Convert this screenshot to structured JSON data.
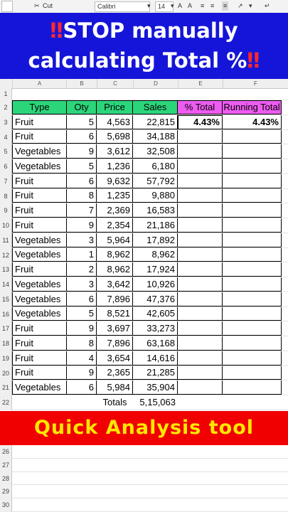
{
  "toolbar": {
    "cut_label": "Cut",
    "font_name": "Calibri",
    "font_size": "14"
  },
  "banner": {
    "line1_mark": "‼",
    "line1_text": "STOP manually",
    "line2_text": "calculating Total %",
    "line2_mark": "‼"
  },
  "columns": [
    "A",
    "B",
    "C",
    "D",
    "E",
    "F"
  ],
  "headers": {
    "type": "Type",
    "qty": "Oty",
    "price": "Price",
    "sales": "Sales",
    "pct_total": "% Total",
    "running_total": "Running Total"
  },
  "first_row_calc": {
    "pct_total": "4.43%",
    "running_total": "4.43%"
  },
  "rows": [
    {
      "type": "Fruit",
      "qty": "5",
      "price": "4,563",
      "sales": "22,815"
    },
    {
      "type": "Fruit",
      "qty": "6",
      "price": "5,698",
      "sales": "34,188"
    },
    {
      "type": "Vegetables",
      "qty": "9",
      "price": "3,612",
      "sales": "32,508"
    },
    {
      "type": "Vegetables",
      "qty": "5",
      "price": "1,236",
      "sales": "6,180"
    },
    {
      "type": "Fruit",
      "qty": "6",
      "price": "9,632",
      "sales": "57,792"
    },
    {
      "type": "Fruit",
      "qty": "8",
      "price": "1,235",
      "sales": "9,880"
    },
    {
      "type": "Fruit",
      "qty": "7",
      "price": "2,369",
      "sales": "16,583"
    },
    {
      "type": "Fruit",
      "qty": "9",
      "price": "2,354",
      "sales": "21,186"
    },
    {
      "type": "Vegetables",
      "qty": "3",
      "price": "5,964",
      "sales": "17,892"
    },
    {
      "type": "Vegetables",
      "qty": "1",
      "price": "8,962",
      "sales": "8,962"
    },
    {
      "type": "Fruit",
      "qty": "2",
      "price": "8,962",
      "sales": "17,924"
    },
    {
      "type": "Vegetables",
      "qty": "3",
      "price": "3,642",
      "sales": "10,926"
    },
    {
      "type": "Vegetables",
      "qty": "6",
      "price": "7,896",
      "sales": "47,376"
    },
    {
      "type": "Vegetables",
      "qty": "5",
      "price": "8,521",
      "sales": "42,605"
    },
    {
      "type": "Fruit",
      "qty": "9",
      "price": "3,697",
      "sales": "33,273"
    },
    {
      "type": "Fruit",
      "qty": "8",
      "price": "7,896",
      "sales": "63,168"
    },
    {
      "type": "Fruit",
      "qty": "4",
      "price": "3,654",
      "sales": "14,616"
    },
    {
      "type": "Fruit",
      "qty": "9",
      "price": "2,365",
      "sales": "21,285"
    },
    {
      "type": "Vegetables",
      "qty": "6",
      "price": "5,984",
      "sales": "35,904"
    }
  ],
  "totals": {
    "label": "Totals",
    "sales": "5,15,063"
  },
  "row_numbers_top": [
    "1",
    "2",
    "3",
    "4",
    "5",
    "6",
    "7",
    "8",
    "9",
    "10",
    "11",
    "12",
    "13",
    "14",
    "15",
    "16",
    "17",
    "18",
    "19",
    "20",
    "21",
    "22"
  ],
  "row_numbers_bottom": [
    "26",
    "27",
    "28",
    "29",
    "30"
  ],
  "footer_banner": "Quick Analysis tool",
  "colors": {
    "banner_blue": "#1515d9",
    "header_green": "#2bd67b",
    "header_pink": "#ee5cf1",
    "band_red": "#f00000",
    "band_text": "#ffe800"
  }
}
